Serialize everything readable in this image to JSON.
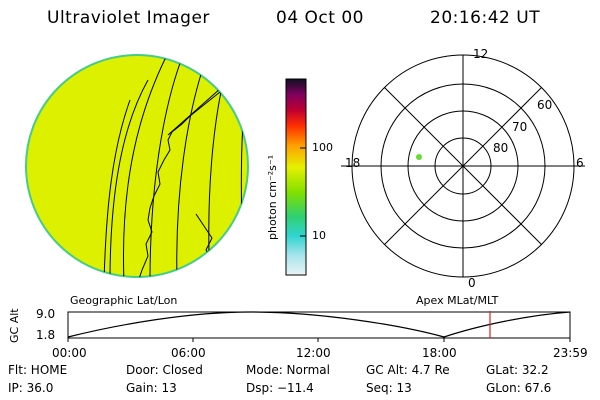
{
  "header": {
    "instrument": "Ultraviolet Imager",
    "date": "04 Oct 00",
    "time": "20:16:42 UT"
  },
  "colorbar": {
    "unit_label": "photon cm⁻²s⁻¹",
    "ticks": [
      "100",
      "10"
    ]
  },
  "polar": {
    "mlt_labels": [
      "12",
      "18",
      "6",
      "0"
    ],
    "lat_labels": [
      "60",
      "70",
      "80"
    ]
  },
  "map_labels": {
    "left": "Geographic Lat/Lon",
    "right": "Apex MLat/MLT"
  },
  "altitude_plot": {
    "axis_label": "GC Alt",
    "y_ticks": [
      "9.0",
      "1.8"
    ],
    "x_ticks": [
      "00:00",
      "06:00",
      "12:00",
      "18:00",
      "23:59"
    ]
  },
  "status": {
    "row1": [
      {
        "text": "Flt: HOME"
      },
      {
        "text": "Door: Closed"
      },
      {
        "text": "Mode: Normal"
      },
      {
        "text": "GC Alt: 4.7 Re"
      },
      {
        "text": "GLat:  32.2"
      }
    ],
    "row2": [
      {
        "text": "IP: 36.0"
      },
      {
        "text": "Gain: 13"
      },
      {
        "text": "Dsp:  −11.4"
      },
      {
        "text": "Seq: 13"
      },
      {
        "text": "GLon:  67.6"
      }
    ]
  },
  "colors": {
    "earth_disk": "#ddf000",
    "disk_edge": "#44cc88",
    "ring_lines": "#000000",
    "marker": "#66dd33",
    "time_marker": "#e02020"
  }
}
